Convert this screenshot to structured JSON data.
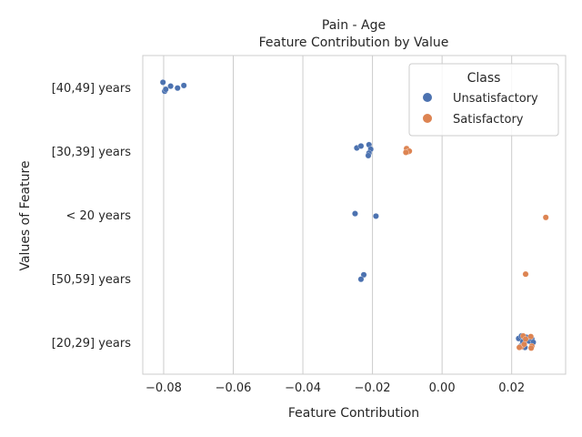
{
  "chart_data": {
    "type": "scatter",
    "title": "Pain - Age",
    "subtitle": "Feature Contribution by Value",
    "xlabel": "Feature Contribution",
    "ylabel": "Values of Feature",
    "xlim": [
      -0.086,
      0.0355
    ],
    "xticks": [
      -0.08,
      -0.06,
      -0.04,
      -0.02,
      0.0,
      0.02
    ],
    "xtick_labels": [
      "−0.08",
      "−0.06",
      "−0.04",
      "−0.02",
      "0.00",
      "0.02"
    ],
    "categories": [
      "[40,49] years",
      "[30,39] years",
      "< 20 years",
      "[50,59] years",
      "[20,29] years"
    ],
    "grid": "vertical",
    "legend": {
      "title": "Class",
      "placement": "top-right",
      "entries": [
        "Unsatisfactory",
        "Satisfactory"
      ]
    },
    "series": [
      {
        "name": "Unsatisfactory",
        "color": "#4c72b0",
        "points": [
          {
            "x": -0.0802,
            "y": "[40,49] years",
            "j": -0.08
          },
          {
            "x": -0.078,
            "y": "[40,49] years",
            "j": -0.02
          },
          {
            "x": -0.076,
            "y": "[40,49] years",
            "j": 0.01
          },
          {
            "x": -0.0742,
            "y": "[40,49] years",
            "j": -0.03
          },
          {
            "x": -0.0797,
            "y": "[40,49] years",
            "j": 0.06
          },
          {
            "x": -0.0794,
            "y": "[40,49] years",
            "j": 0.03
          },
          {
            "x": -0.0245,
            "y": "[30,39] years",
            "j": -0.05
          },
          {
            "x": -0.0233,
            "y": "[30,39] years",
            "j": -0.08
          },
          {
            "x": -0.021,
            "y": "[30,39] years",
            "j": -0.1
          },
          {
            "x": -0.0205,
            "y": "[30,39] years",
            "j": -0.03
          },
          {
            "x": -0.021,
            "y": "[30,39] years",
            "j": 0.03
          },
          {
            "x": -0.0212,
            "y": "[30,39] years",
            "j": 0.07
          },
          {
            "x": -0.025,
            "y": "< 20 years",
            "j": -0.02
          },
          {
            "x": -0.019,
            "y": "< 20 years",
            "j": 0.02
          },
          {
            "x": -0.0225,
            "y": "[50,59] years",
            "j": -0.06
          },
          {
            "x": -0.0233,
            "y": "[50,59] years",
            "j": 0.01
          },
          {
            "x": 0.022,
            "y": "[20,29] years",
            "j": -0.06
          },
          {
            "x": 0.0228,
            "y": "[20,29] years",
            "j": -0.1
          },
          {
            "x": 0.0235,
            "y": "[20,29] years",
            "j": -0.04
          },
          {
            "x": 0.0242,
            "y": "[20,29] years",
            "j": -0.08
          },
          {
            "x": 0.025,
            "y": "[20,29] years",
            "j": -0.02
          },
          {
            "x": 0.0258,
            "y": "[20,29] years",
            "j": -0.05
          },
          {
            "x": 0.0262,
            "y": "[20,29] years",
            "j": 0.0
          },
          {
            "x": 0.023,
            "y": "[20,29] years",
            "j": 0.04
          },
          {
            "x": 0.0238,
            "y": "[20,29] years",
            "j": 0.08
          },
          {
            "x": 0.0226,
            "y": "[20,29] years",
            "j": 0.06
          },
          {
            "x": 0.0232,
            "y": "[20,29] years",
            "j": -0.01
          }
        ]
      },
      {
        "name": "Satisfactory",
        "color": "#dd8452",
        "points": [
          {
            "x": -0.0102,
            "y": "[30,39] years",
            "j": -0.04
          },
          {
            "x": -0.0098,
            "y": "[30,39] years",
            "j": 0.01
          },
          {
            "x": -0.0094,
            "y": "[30,39] years",
            "j": 0.0
          },
          {
            "x": -0.0104,
            "y": "[30,39] years",
            "j": 0.02
          },
          {
            "x": 0.0298,
            "y": "< 20 years",
            "j": 0.04
          },
          {
            "x": 0.024,
            "y": "[50,59] years",
            "j": -0.07
          },
          {
            "x": 0.0233,
            "y": "[20,29] years",
            "j": -0.1
          },
          {
            "x": 0.0255,
            "y": "[20,29] years",
            "j": -0.09
          },
          {
            "x": 0.0228,
            "y": "[20,29] years",
            "j": 0.07
          },
          {
            "x": 0.0236,
            "y": "[20,29] years",
            "j": 0.03
          },
          {
            "x": 0.0258,
            "y": "[20,29] years",
            "j": 0.06
          },
          {
            "x": 0.0256,
            "y": "[20,29] years",
            "j": 0.09
          },
          {
            "x": 0.0222,
            "y": "[20,29] years",
            "j": 0.08
          },
          {
            "x": 0.024,
            "y": "[20,29] years",
            "j": -0.05
          }
        ]
      }
    ]
  }
}
